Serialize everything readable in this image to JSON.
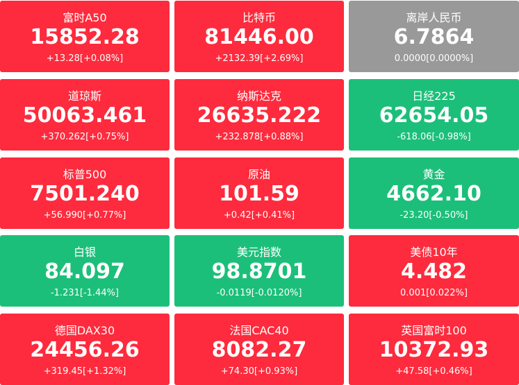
{
  "tiles": [
    {
      "name": "富时A50",
      "price": "15852.28",
      "change": "+13.28[+0.08%]",
      "color": "#fd2b3d"
    },
    {
      "name": "比特币",
      "price": "81446.00",
      "change": "+2132.39[+2.69%]",
      "color": "#fd2b3d"
    },
    {
      "name": "离岸人民币",
      "price": "6.7864",
      "change": "0.0000[0.0000%]",
      "color": "#999999"
    },
    {
      "name": "道琼斯",
      "price": "50063.461",
      "change": "+370.262[+0.75%]",
      "color": "#fd2b3d"
    },
    {
      "name": "纳斯达克",
      "price": "26635.222",
      "change": "+232.878[+0.88%]",
      "color": "#fd2b3d"
    },
    {
      "name": "日经225",
      "price": "62654.05",
      "change": "-618.06[-0.98%]",
      "color": "#1cbf7a"
    },
    {
      "name": "标普500",
      "price": "7501.240",
      "change": "+56.990[+0.77%]",
      "color": "#fd2b3d"
    },
    {
      "name": "原油",
      "price": "101.59",
      "change": "+0.42[+0.41%]",
      "color": "#fd2b3d"
    },
    {
      "name": "黄金",
      "price": "4662.10",
      "change": "-23.20[-0.50%]",
      "color": "#1cbf7a"
    },
    {
      "name": "白银",
      "price": "84.097",
      "change": "-1.231[-1.44%]",
      "color": "#1cbf7a"
    },
    {
      "name": "美元指数",
      "price": "98.8701",
      "change": "-0.0119[-0.0120%]",
      "color": "#1cbf7a"
    },
    {
      "name": "美债10年",
      "price": "4.482",
      "change": "0.001[0.022%]",
      "color": "#fd2b3d"
    },
    {
      "name": "德国DAX30",
      "price": "24456.26",
      "change": "+319.45[+1.32%]",
      "color": "#fd2b3d"
    },
    {
      "name": "法国CAC40",
      "price": "8082.27",
      "change": "+74.30[+0.93%]",
      "color": "#fd2b3d"
    },
    {
      "name": "英国富时100",
      "price": "10372.93",
      "change": "+47.58[+0.46%]",
      "color": "#fd2b3d"
    }
  ]
}
